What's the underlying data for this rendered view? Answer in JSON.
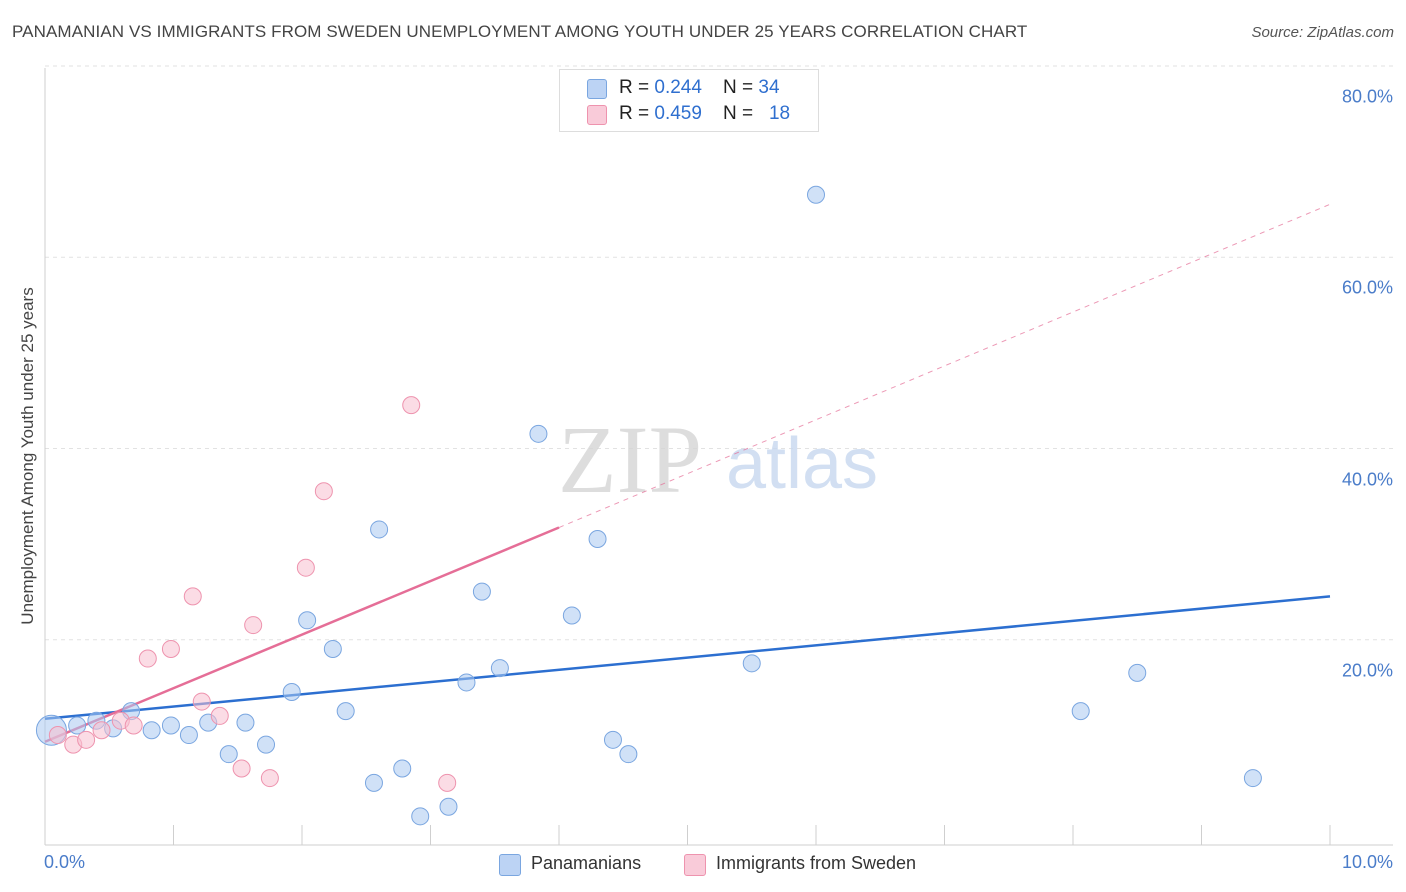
{
  "title": "PANAMANIAN VS IMMIGRANTS FROM SWEDEN UNEMPLOYMENT AMONG YOUTH UNDER 25 YEARS CORRELATION CHART",
  "source": "Source: ZipAtlas.com",
  "watermark": {
    "zip": "ZIP",
    "atlas": "atlas"
  },
  "legend": {
    "rows": [
      {
        "r_label": "R = ",
        "r_value": "0.244",
        "n_label": "N = ",
        "n_value": "34"
      },
      {
        "r_label": "R = ",
        "r_value": "0.459",
        "n_label": "N = ",
        "n_value": "18"
      }
    ]
  },
  "chart_data": {
    "type": "scatter",
    "title": "PANAMANIAN VS IMMIGRANTS FROM SWEDEN UNEMPLOYMENT AMONG YOUTH UNDER 25 YEARS CORRELATION CHART",
    "xlabel": "",
    "ylabel": "Unemployment Among Youth under 25 years",
    "xlim": [
      0,
      10
    ],
    "ylim": [
      0,
      80
    ],
    "x_tick_labels": [
      "0.0%",
      "10.0%"
    ],
    "y_ticks": [
      20,
      40,
      60,
      80
    ],
    "y_tick_labels": [
      "20.0%",
      "40.0%",
      "60.0%",
      "80.0%"
    ],
    "grid": true,
    "legend_position": "bottom",
    "series": [
      {
        "name": "Panamanians",
        "color": "#a9c8f0",
        "stroke": "#7aa6e0",
        "points": [
          [
            0.05,
            12.0
          ],
          [
            0.25,
            12.5
          ],
          [
            0.4,
            13.0
          ],
          [
            0.53,
            12.2
          ],
          [
            0.67,
            14.0
          ],
          [
            0.83,
            12.0
          ],
          [
            0.98,
            12.5
          ],
          [
            1.12,
            11.5
          ],
          [
            1.27,
            12.8
          ],
          [
            1.43,
            9.5
          ],
          [
            1.56,
            12.8
          ],
          [
            1.72,
            10.5
          ],
          [
            1.92,
            16.0
          ],
          [
            2.04,
            23.5
          ],
          [
            2.24,
            20.5
          ],
          [
            2.34,
            14.0
          ],
          [
            2.56,
            6.5
          ],
          [
            2.6,
            33.0
          ],
          [
            2.78,
            8.0
          ],
          [
            2.92,
            3.0
          ],
          [
            3.14,
            4.0
          ],
          [
            3.28,
            17.0
          ],
          [
            3.4,
            26.5
          ],
          [
            3.54,
            18.5
          ],
          [
            3.84,
            43.0
          ],
          [
            4.1,
            24.0
          ],
          [
            4.3,
            32.0
          ],
          [
            4.42,
            11.0
          ],
          [
            4.54,
            9.5
          ],
          [
            5.5,
            19.0
          ],
          [
            6.0,
            68.0
          ],
          [
            8.06,
            14.0
          ],
          [
            8.5,
            18.0
          ],
          [
            9.4,
            7.0
          ]
        ]
      },
      {
        "name": "Immigrants from Sweden",
        "color": "#f7bfd0",
        "stroke": "#ee93ae",
        "points": [
          [
            0.1,
            11.5
          ],
          [
            0.22,
            10.5
          ],
          [
            0.32,
            11.0
          ],
          [
            0.44,
            12.0
          ],
          [
            0.59,
            13.0
          ],
          [
            0.69,
            12.5
          ],
          [
            0.8,
            19.5
          ],
          [
            0.98,
            20.5
          ],
          [
            1.15,
            26.0
          ],
          [
            1.22,
            15.0
          ],
          [
            1.36,
            13.5
          ],
          [
            1.53,
            8.0
          ],
          [
            1.62,
            23.0
          ],
          [
            1.75,
            7.0
          ],
          [
            2.03,
            29.0
          ],
          [
            2.17,
            37.0
          ],
          [
            2.85,
            46.0
          ],
          [
            3.13,
            6.5
          ]
        ]
      }
    ],
    "trendlines": [
      {
        "series": "Panamanians",
        "x0": 0.0,
        "y0": 13.2,
        "x1": 10.0,
        "y1": 26.0,
        "style": "solid"
      },
      {
        "series": "Immigrants from Sweden",
        "x0": 0.0,
        "y0": 10.8,
        "x1": 4.0,
        "y1": 33.2,
        "style": "solid"
      },
      {
        "series": "Immigrants from Sweden",
        "x0": 4.0,
        "y0": 33.2,
        "x1": 10.0,
        "y1": 67.0,
        "style": "dashed"
      }
    ]
  }
}
